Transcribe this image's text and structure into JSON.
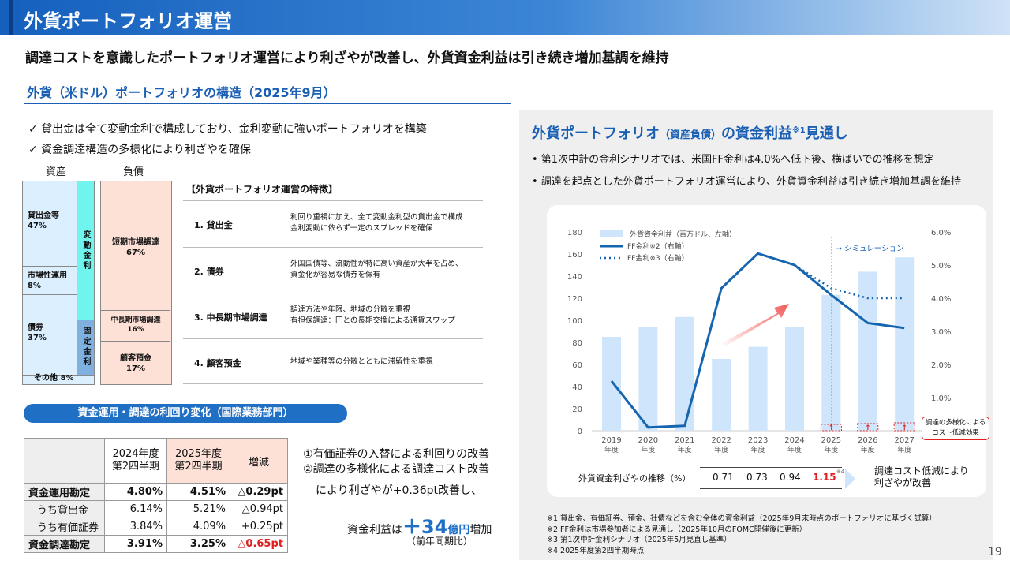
{
  "header": {
    "title": "外貨ポートフォリオ運営"
  },
  "subtitle": "調達コストを意識したポートフォリオ運営により利ざやが改善し、外貨資金利益は引き続き増加基調を維持",
  "section_title": "外貨（米ドル）ポートフォリオの構造（2025年9月）",
  "checks": [
    "✓ 貸出金は全て変動金利で構成しており、金利変動に強いポートフォリオを構築",
    "✓ 資金調達構造の多様化により利ざやを確保"
  ],
  "balance": {
    "assets_label": "資産",
    "liabilities_label": "負債",
    "assets": [
      {
        "name": "貸出金等",
        "pct": "47%"
      },
      {
        "name": "市場性運用",
        "pct": "8%"
      },
      {
        "name": "債券",
        "pct": "37%"
      },
      {
        "name": "その他 8%"
      }
    ],
    "variable_label": "変動金利",
    "fixed_label": "固定金利",
    "liabilities": [
      {
        "name": "短期市場調達",
        "pct": "67%"
      },
      {
        "name": "中長期市場調達",
        "pct": "16%"
      },
      {
        "name": "顧客預金",
        "pct": "17%"
      }
    ]
  },
  "features": {
    "title": "【外貨ポートフォリオ運営の特徴】",
    "items": [
      {
        "label": "1.  貸出金",
        "desc": "利回り重視に加え、全て変動金利型の貸出金で構成\n金利変動に依らず一定のスプレッドを確保"
      },
      {
        "label": "2.  債券",
        "desc": "外国国債等、流動性が特に高い資産が大半を占め、\n資金化が容易な債券を保有"
      },
      {
        "label": "3.  中長期市場調達",
        "desc": "調達方法や年限、地域の分散を重視\n有担保調達：円との長期交換による通貨スワップ"
      },
      {
        "label": "4.  顧客預金",
        "desc": "地域や業種等の分散とともに滞留性を重視"
      }
    ]
  },
  "yield": {
    "pill": "資金運用・調達の利回り変化（国際業務部門）",
    "headers": [
      "2024年度\n第2四半期",
      "2025年度\n第2四半期",
      "増減"
    ],
    "rows": [
      {
        "label": "資金運用勘定",
        "a": "4.80%",
        "b": "4.51%",
        "d": "△0.29pt"
      },
      {
        "label": "うち貸出金",
        "a": "6.14%",
        "b": "5.21%",
        "d": "△0.94pt"
      },
      {
        "label": "うち有価証券",
        "a": "3.84%",
        "b": "4.09%",
        "d": "+0.25pt"
      },
      {
        "label": "資金調達勘定",
        "a": "3.91%",
        "b": "3.25%",
        "d": "△0.65pt"
      }
    ],
    "note1": "①有価証券の入替による利回りの改善",
    "note2": "②調達の多様化による調達コスト改善",
    "note3": "により利ざやが+0.36pt改善し、",
    "result_pre": "資金利益は",
    "result_value": "＋34",
    "result_unit": "億円",
    "result_post": "増加",
    "result_sub": "（前年同期比）"
  },
  "right": {
    "title_a": "外貨ポートフォリオ",
    "title_b": "（資産負債）",
    "title_c": "の資金利益",
    "title_sup": "※1",
    "title_d": "見通し",
    "bullets": [
      "• 第1次中計の金利シナリオでは、米国FF金利は4.0%へ低下後、横ばいでの推移を想定",
      "• 調達を起点とした外貨ポートフォリオ運営により、外貨資金利益は引き続き増加基調を維持"
    ]
  },
  "chart_data": {
    "type": "bar+line",
    "categories": [
      "2019\n年度",
      "2020\n年度",
      "2021\n年度",
      "2022\n年度",
      "2023\n年度",
      "2024\n年度",
      "2025\n年度",
      "2026\n年度",
      "2027\n年度"
    ],
    "series": [
      {
        "name": "外貨資金利益（百万ドル、左軸）",
        "type": "bar",
        "values": [
          85,
          94,
          103,
          65,
          76,
          94,
          123,
          144,
          157
        ]
      },
      {
        "name": "FF金利※2（右軸）",
        "type": "line",
        "values": [
          1.5,
          0.1,
          0.15,
          4.3,
          5.35,
          5.0,
          4.1,
          3.25,
          3.1
        ]
      },
      {
        "name": "FF金利※3（右軸）",
        "type": "dotted",
        "values": [
          null,
          null,
          null,
          null,
          null,
          5.0,
          4.3,
          4.0,
          4.0
        ]
      }
    ],
    "ylim": [
      0,
      180
    ],
    "yticks": [
      "0",
      "20",
      "40",
      "60",
      "80",
      "100",
      "120",
      "140",
      "160",
      "180"
    ],
    "y2lim": [
      0,
      6
    ],
    "y2ticks": [
      "1.0%",
      "2.0%",
      "3.0%",
      "4.0%",
      "5.0%",
      "6.0%"
    ],
    "simulation_label": "→ シミュレーション",
    "annotation": "調達の多様化による\nコスト低減効果"
  },
  "margin": {
    "label": "外貨資金利ざやの推移（%）",
    "values": [
      "0.71",
      "0.73",
      "0.94",
      "1.15"
    ],
    "note": "※4",
    "result": "調達コスト低減により\n利ざやが改善"
  },
  "footnotes": [
    "※1 貸出金、有価証券、預金、社債などを含む全体の資金利益（2025年9月末時点のポートフォリオに基づく試算）",
    "※2 FF金利は市場参加者による見通し（2025年10月のFOMC開催後に更新）",
    "※3 第1次中計金利シナリオ（2025年5月見直し基準）",
    "※4 2025年度第2四半期時点"
  ],
  "page_number": "19",
  "colors": {
    "blue": "#1a5fb4",
    "bar": "#cfe5fb",
    "red": "#e02020",
    "cyan": "#6ff5ee",
    "pink": "#fde0d6"
  }
}
